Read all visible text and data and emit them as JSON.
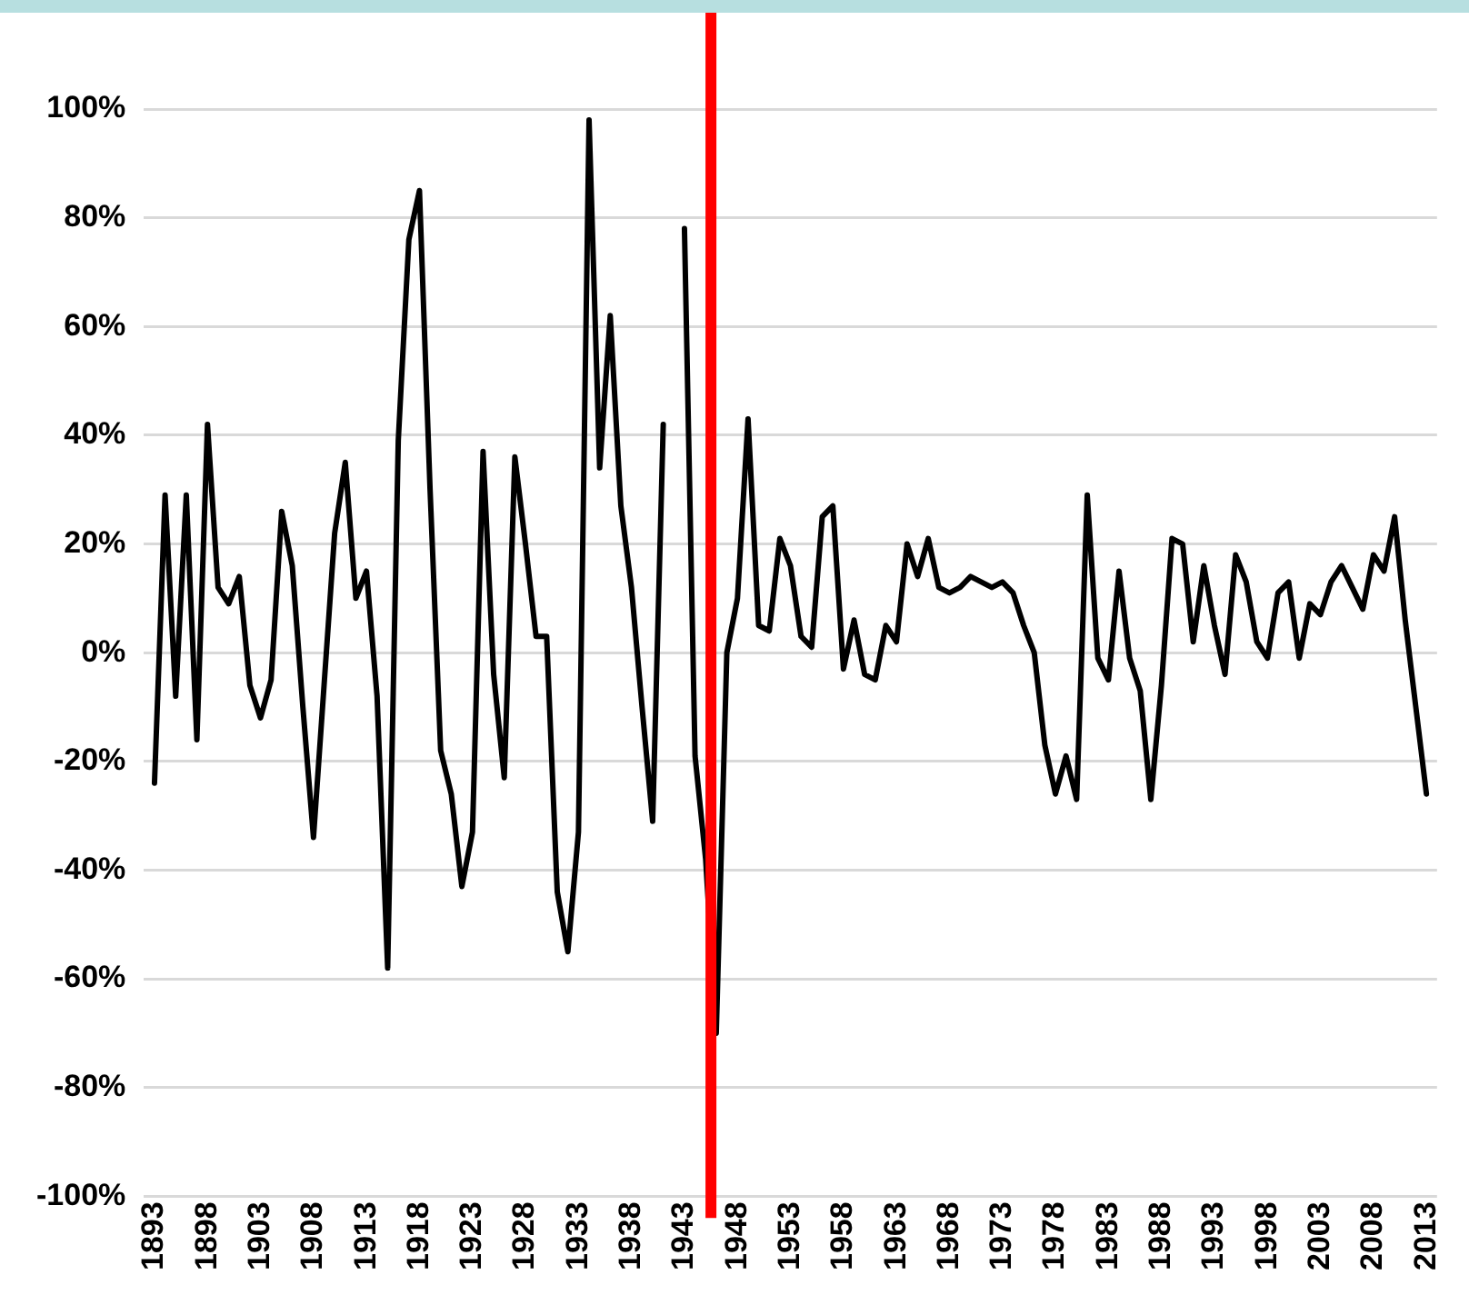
{
  "chart_data": {
    "type": "line",
    "x": [
      1893,
      1894,
      1895,
      1896,
      1897,
      1898,
      1899,
      1900,
      1901,
      1902,
      1903,
      1904,
      1905,
      1906,
      1907,
      1908,
      1909,
      1910,
      1911,
      1912,
      1913,
      1914,
      1915,
      1916,
      1917,
      1918,
      1919,
      1920,
      1921,
      1922,
      1923,
      1924,
      1925,
      1926,
      1927,
      1928,
      1929,
      1930,
      1931,
      1932,
      1933,
      1934,
      1935,
      1936,
      1937,
      1938,
      1939,
      1940,
      1941,
      1942,
      1943,
      1944,
      1945,
      1946,
      1947,
      1948,
      1949,
      1950,
      1951,
      1952,
      1953,
      1954,
      1955,
      1956,
      1957,
      1958,
      1959,
      1960,
      1961,
      1962,
      1963,
      1964,
      1965,
      1966,
      1967,
      1968,
      1969,
      1970,
      1971,
      1972,
      1973,
      1974,
      1975,
      1976,
      1977,
      1978,
      1979,
      1980,
      1981,
      1982,
      1983,
      1984,
      1985,
      1986,
      1987,
      1988,
      1989,
      1990,
      1991,
      1992,
      1993,
      1994,
      1995,
      1996,
      1997,
      1998,
      1999,
      2000,
      2001,
      2002,
      2003,
      2004,
      2005,
      2006,
      2007,
      2008,
      2009,
      2010,
      2011,
      2012,
      2013
    ],
    "series": [
      {
        "color": "#000000",
        "values": [
          -24,
          29,
          -8,
          29,
          -16,
          42,
          12,
          9,
          14,
          -6,
          -12,
          -5,
          26,
          16,
          -10,
          -34,
          -6,
          22,
          35,
          10,
          15,
          -8,
          -58,
          39,
          76,
          85,
          30,
          -18,
          -26,
          -43,
          -33,
          37,
          -4,
          -23,
          36,
          20,
          3,
          3,
          -44,
          -55,
          -33,
          98,
          34,
          62,
          27,
          12,
          -10,
          -31,
          42,
          null,
          78,
          -19,
          -38,
          -70,
          0,
          10,
          43,
          5,
          4,
          21,
          16,
          3,
          1,
          25,
          27,
          -3,
          6,
          -4,
          -5,
          5,
          2,
          20,
          14,
          21,
          12,
          11,
          12,
          14,
          13,
          12,
          13,
          11,
          5,
          0,
          -17,
          -26,
          -19,
          -27,
          29,
          -1,
          -5,
          15,
          -1,
          -7,
          -27,
          -6,
          21,
          20,
          2,
          16,
          5,
          -4,
          18,
          13,
          2,
          -1,
          11,
          13,
          -1,
          9,
          7,
          13,
          16,
          12,
          8,
          18,
          15,
          25,
          6,
          -10,
          -26
        ]
      }
    ],
    "xlim": [
      1892,
      2014
    ],
    "xticks": [
      1893,
      1898,
      1903,
      1908,
      1913,
      1918,
      1923,
      1928,
      1933,
      1938,
      1943,
      1948,
      1953,
      1958,
      1963,
      1968,
      1973,
      1978,
      1983,
      1988,
      1993,
      1998,
      2003,
      2008,
      2013
    ],
    "ylim": [
      -100,
      100
    ],
    "yticks": [
      {
        "value": -100,
        "label": "-100%"
      },
      {
        "value": -80,
        "label": "-80%"
      },
      {
        "value": -60,
        "label": "-60%"
      },
      {
        "value": -40,
        "label": "-40%"
      },
      {
        "value": -20,
        "label": "-20%"
      },
      {
        "value": 0,
        "label": "0%"
      },
      {
        "value": 20,
        "label": "20%"
      },
      {
        "value": 40,
        "label": "40%"
      },
      {
        "value": 60,
        "label": "60%"
      },
      {
        "value": 80,
        "label": "80%"
      },
      {
        "value": 100,
        "label": "100%"
      }
    ],
    "ref_lines": [
      {
        "axis": "x",
        "value": 1945.5,
        "color": "#ff0000"
      }
    ],
    "grid": "y",
    "legend": false,
    "marker": "none",
    "line_style": "solid"
  }
}
